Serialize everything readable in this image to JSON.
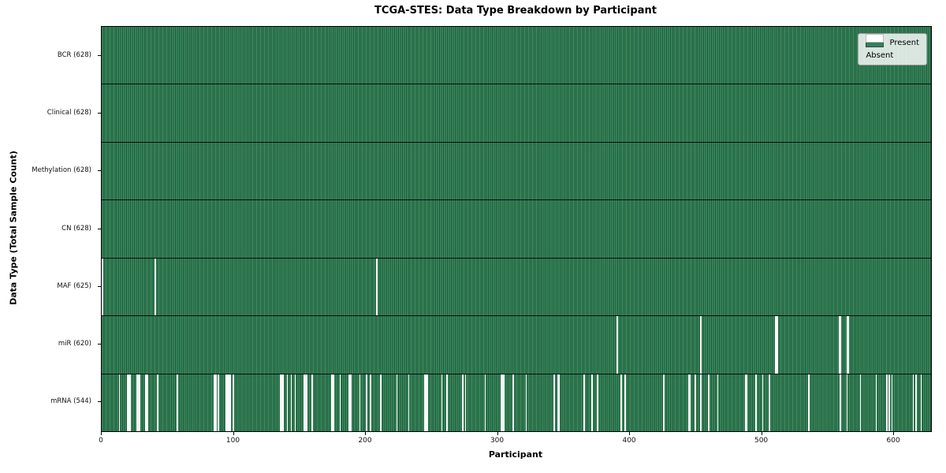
{
  "figure": {
    "title": "TCGA-STES: Data Type Breakdown by Participant",
    "xlabel": "Participant",
    "ylabel": "Data Type (Total Sample Count)"
  },
  "legend": {
    "items": [
      {
        "label": "Present",
        "kind": "present",
        "color": "#2e8457"
      },
      {
        "label": "Absent",
        "kind": "absent",
        "color": "#ffffff"
      }
    ]
  },
  "colors": {
    "present_green": "#2e8457",
    "present_stripe_light": "#3a8c60",
    "present_stripe_dark": "#1e5636",
    "absent_white": "#fafafa",
    "legend_background": "#e2e8e2",
    "axis_line": "#000000"
  },
  "chart_data": {
    "type": "heatmap",
    "title": "TCGA-STES: Data Type Breakdown by Participant",
    "xlabel": "Participant",
    "ylabel": "Data Type (Total Sample Count)",
    "legend": [
      "Present",
      "Absent"
    ],
    "legend_position": "upper right",
    "grid": false,
    "n_participants": 628,
    "x_range": [
      0,
      628
    ],
    "x_ticks": [
      0,
      100,
      200,
      300,
      400,
      500,
      600
    ],
    "rows": [
      {
        "label": "BCR (628)",
        "data_type": "BCR",
        "present_count": 628,
        "absent_participants": []
      },
      {
        "label": "Clinical (628)",
        "data_type": "Clinical",
        "present_count": 628,
        "absent_participants": []
      },
      {
        "label": "Methylation (628)",
        "data_type": "Methylation",
        "present_count": 628,
        "absent_participants": []
      },
      {
        "label": "CN (628)",
        "data_type": "CN",
        "present_count": 628,
        "absent_participants": []
      },
      {
        "label": "MAF (625)",
        "data_type": "MAF",
        "present_count": 625,
        "absent_participants": [
          0,
          40,
          208
        ]
      },
      {
        "label": "miR (620)",
        "data_type": "miR",
        "present_count": 620,
        "absent_participants": [
          390,
          453,
          510,
          511,
          558,
          559,
          564,
          565
        ]
      },
      {
        "label": "mRNA (544)",
        "data_type": "mRNA",
        "present_count": 544,
        "absent_participants": [
          13,
          19,
          20,
          21,
          26,
          27,
          28,
          33,
          34,
          42,
          57,
          85,
          86,
          88,
          94,
          95,
          96,
          97,
          99,
          135,
          136,
          137,
          140,
          143,
          146,
          153,
          154,
          155,
          159,
          174,
          175,
          180,
          187,
          188,
          195,
          200,
          203,
          211,
          223,
          232,
          244,
          245,
          246,
          257,
          261,
          273,
          275,
          290,
          302,
          303,
          304,
          311,
          321,
          342,
          345,
          346,
          365,
          371,
          375,
          393,
          396,
          425,
          444,
          445,
          449,
          453,
          459,
          466,
          487,
          488,
          495,
          500,
          505,
          535,
          559,
          564,
          574,
          586,
          594,
          596,
          598,
          614,
          616,
          620
        ]
      }
    ]
  }
}
